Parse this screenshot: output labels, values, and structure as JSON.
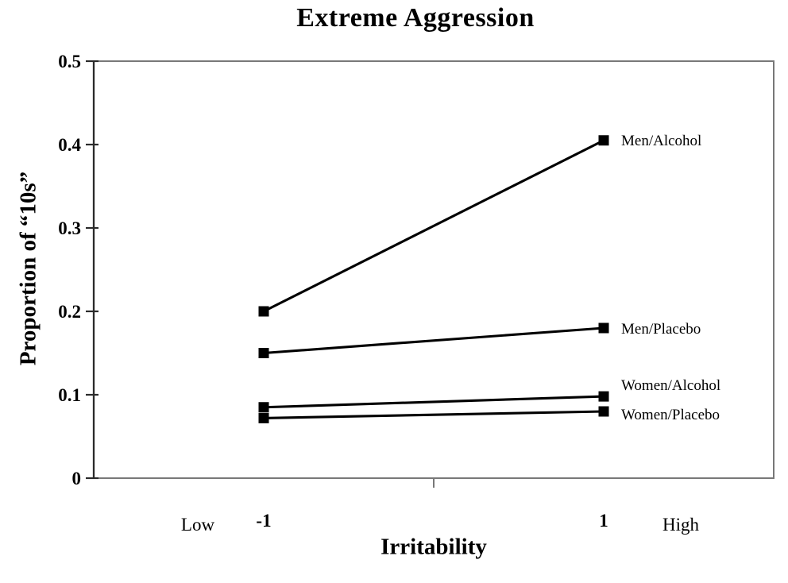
{
  "figure": {
    "background_color": "#ffffff",
    "ink_color": "#000000",
    "frame_color": "#787878"
  },
  "chart_data": {
    "type": "line",
    "title": "Extreme Aggression",
    "xlabel": "Irritability",
    "ylabel": "Proportion of “10s”",
    "x": [
      -1,
      1
    ],
    "x_tick_labels": [
      "-1",
      "1"
    ],
    "x_annotations": [
      {
        "label": "Low",
        "anchor_x": -1,
        "side": "left"
      },
      {
        "label": "High",
        "anchor_x": 1,
        "side": "right"
      }
    ],
    "xlim": [
      -2,
      2
    ],
    "ylim": [
      0,
      0.5
    ],
    "yticks": [
      0,
      0.1,
      0.2,
      0.3,
      0.4,
      0.5
    ],
    "ytick_labels": [
      "0",
      "0.1",
      "0.2",
      "0.3",
      "0.4",
      "0.5"
    ],
    "grid": false,
    "marker": "filled-square",
    "line_color": "#000000",
    "legend_position": "labels-right-of-last-point",
    "series": [
      {
        "name": "Men/Alcohol",
        "values": [
          0.2,
          0.405
        ]
      },
      {
        "name": "Men/Placebo",
        "values": [
          0.15,
          0.18
        ]
      },
      {
        "name": "Women/Alcohol",
        "values": [
          0.085,
          0.098
        ]
      },
      {
        "name": "Women/Placebo",
        "values": [
          0.072,
          0.08
        ]
      }
    ]
  }
}
